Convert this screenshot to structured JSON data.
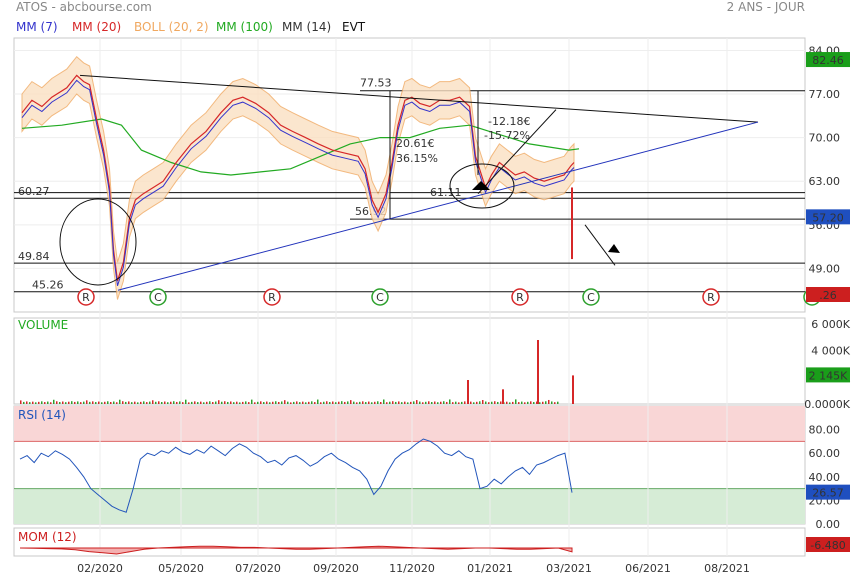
{
  "header": {
    "left": "ATOS - abcbourse.com",
    "right": "2 ANS - JOUR"
  },
  "legend": [
    {
      "label": "MM (7)",
      "color": "#3333cc"
    },
    {
      "label": "MM (20)",
      "color": "#d62728"
    },
    {
      "label": "BOLL (20, 2)",
      "color": "#f0a860"
    },
    {
      "label": "MM (100)",
      "color": "#22aa22"
    },
    {
      "label": "MM (14)",
      "color": "#333333"
    },
    {
      "label": "EVT",
      "color": "#111111"
    }
  ],
  "chart_data": [
    {
      "type": "line",
      "panel": "price",
      "title": "ATOS",
      "x_labels": [
        "02/2020",
        "05/2020",
        "07/2020",
        "09/2020",
        "11/2020",
        "01/2021",
        "03/2021",
        "06/2021",
        "08/2021"
      ],
      "y_ticks": [
        84.0,
        77.0,
        70.0,
        63.0,
        56.0,
        49.0
      ],
      "ylim": [
        42.0,
        86.0
      ],
      "badges": [
        {
          "label": "82.46",
          "color": "#1a9e1a"
        },
        {
          "label": "57.20",
          "color": "#1f4fbf"
        },
        {
          "label": ".26",
          "color": "#cc1f1f"
        }
      ],
      "levels": [
        {
          "label": "60.27",
          "value": 60.27
        },
        {
          "label": "49.84",
          "value": 49.84
        },
        {
          "label": "45.26",
          "value": 45.26
        },
        {
          "label": "77.53",
          "value": 77.53
        },
        {
          "label": "56.92",
          "value": 56.92
        },
        {
          "label": "61.11",
          "value": 61.11
        }
      ],
      "annotations": [
        "20.61€",
        "36.15%",
        "-12.18€",
        "-15.72%"
      ],
      "events": [
        {
          "label": "R",
          "color": "#d62728"
        },
        {
          "label": "C",
          "color": "#2ca02c"
        },
        {
          "label": "R",
          "color": "#d62728"
        },
        {
          "label": "C",
          "color": "#2ca02c"
        },
        {
          "label": "R",
          "color": "#d62728"
        },
        {
          "label": "C",
          "color": "#2ca02c"
        },
        {
          "label": "R",
          "color": "#d62728"
        },
        {
          "label": "C",
          "color": "#2ca02c"
        }
      ],
      "series": [
        {
          "name": "MM (100)",
          "points": [
            [
              0,
              71.5
            ],
            [
              40,
              72
            ],
            [
              80,
              73
            ],
            [
              100,
              72
            ],
            [
              120,
              68
            ],
            [
              150,
              66
            ],
            [
              180,
              64.5
            ],
            [
              210,
              64
            ],
            [
              240,
              64.5
            ],
            [
              270,
              65
            ],
            [
              300,
              67
            ],
            [
              330,
              69
            ],
            [
              360,
              70
            ],
            [
              390,
              70
            ],
            [
              420,
              71.5
            ],
            [
              450,
              72
            ],
            [
              470,
              71
            ],
            [
              490,
              70
            ],
            [
              510,
              69
            ],
            [
              530,
              68.5
            ],
            [
              550,
              68
            ],
            [
              560,
              68.2
            ]
          ]
        },
        {
          "name": "Close",
          "points": [
            [
              0,
              74
            ],
            [
              10,
              76
            ],
            [
              20,
              75
            ],
            [
              30,
              76.5
            ],
            [
              45,
              78
            ],
            [
              55,
              80
            ],
            [
              62,
              79
            ],
            [
              68,
              78.5
            ],
            [
              75,
              73
            ],
            [
              82,
              68
            ],
            [
              88,
              62
            ],
            [
              92,
              52
            ],
            [
              96,
              47
            ],
            [
              102,
              50
            ],
            [
              108,
              57
            ],
            [
              114,
              60
            ],
            [
              122,
              61
            ],
            [
              132,
              62
            ],
            [
              142,
              63
            ],
            [
              155,
              66
            ],
            [
              170,
              69
            ],
            [
              185,
              71
            ],
            [
              200,
              74
            ],
            [
              212,
              76
            ],
            [
              222,
              76.5
            ],
            [
              235,
              75.5
            ],
            [
              248,
              74
            ],
            [
              260,
              72
            ],
            [
              272,
              71
            ],
            [
              285,
              70
            ],
            [
              298,
              69
            ],
            [
              312,
              68
            ],
            [
              325,
              67.5
            ],
            [
              338,
              67
            ],
            [
              345,
              65
            ],
            [
              352,
              60
            ],
            [
              358,
              58
            ],
            [
              366,
              61
            ],
            [
              372,
              66
            ],
            [
              378,
              72
            ],
            [
              385,
              76
            ],
            [
              392,
              76.5
            ],
            [
              400,
              75.5
            ],
            [
              410,
              75
            ],
            [
              420,
              76
            ],
            [
              430,
              76
            ],
            [
              440,
              76.5
            ],
            [
              450,
              75
            ],
            [
              456,
              67
            ],
            [
              460,
              65
            ],
            [
              466,
              62
            ],
            [
              472,
              64
            ],
            [
              480,
              66
            ],
            [
              488,
              65
            ],
            [
              496,
              64
            ],
            [
              505,
              64.5
            ],
            [
              515,
              63.5
            ],
            [
              525,
              63
            ],
            [
              535,
              63.5
            ],
            [
              545,
              64
            ],
            [
              552,
              65.5
            ],
            [
              555,
              66
            ]
          ]
        }
      ]
    },
    {
      "type": "bar",
      "panel": "volume",
      "title": "VOLUME",
      "y_ticks": [
        "6 000K",
        "4 000K",
        "2 000K",
        "0.0000K"
      ],
      "ylim": [
        0,
        6000
      ],
      "badge": {
        "label": "2 145K",
        "color": "#1a9e1a"
      },
      "last_spikes": [
        1800,
        1100,
        4800,
        2145
      ]
    },
    {
      "type": "line",
      "panel": "rsi",
      "title": "RSI (14)",
      "y_ticks": [
        80.0,
        60.0,
        40.0,
        20.0,
        0.0
      ],
      "ylim": [
        0,
        100
      ],
      "badge": {
        "label": "26.57",
        "color": "#1f4fbf"
      },
      "values": [
        55,
        58,
        52,
        60,
        57,
        62,
        59,
        55,
        48,
        40,
        30,
        25,
        20,
        15,
        12,
        10,
        30,
        55,
        60,
        58,
        62,
        60,
        65,
        61,
        59,
        63,
        60,
        66,
        62,
        58,
        64,
        68,
        65,
        60,
        57,
        52,
        54,
        50,
        56,
        58,
        54,
        49,
        52,
        57,
        60,
        55,
        52,
        48,
        45,
        38,
        25,
        32,
        45,
        55,
        60,
        63,
        68,
        72,
        70,
        66,
        60,
        58,
        62,
        57,
        55,
        30,
        32,
        38,
        34,
        40,
        45,
        48,
        42,
        50,
        52,
        55,
        58,
        60,
        26.57
      ]
    },
    {
      "type": "area",
      "panel": "momentum",
      "title": "MOM (12)",
      "badge": {
        "label": "-6.480",
        "color": "#cc1f1f"
      },
      "values": [
        0,
        -0.5,
        -1,
        -1.5,
        -3,
        -6,
        -8,
        -10,
        -6,
        -2,
        0,
        1,
        2,
        3,
        3,
        2,
        1,
        1,
        0,
        -1,
        -2,
        -2,
        -1,
        0,
        1,
        2,
        3,
        2,
        1,
        0,
        -1,
        -2,
        -1,
        0,
        0,
        -1,
        -2,
        -2,
        -1,
        0,
        -6.48
      ]
    }
  ]
}
